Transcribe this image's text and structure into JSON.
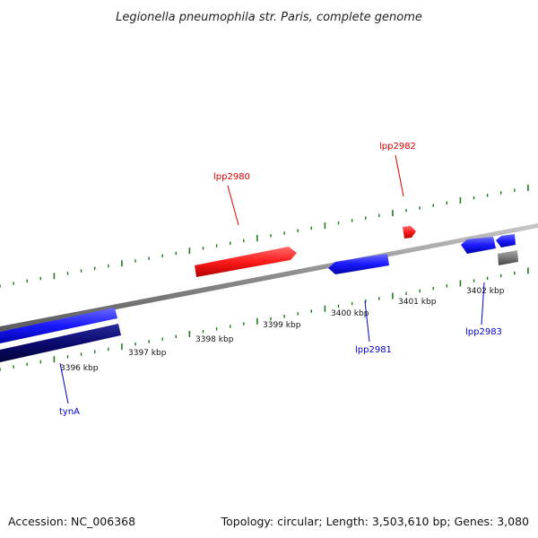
{
  "title": "Legionella pneumophila str. Paris, complete genome",
  "footer": {
    "accession": "Accession: NC_006368",
    "summary": "Topology: circular; Length: 3,503,610 bp; Genes: 3,080"
  },
  "tick_labels": [
    "3396 kbp",
    "3397 kbp",
    "3398 kbp",
    "3399 kbp",
    "3400 kbp",
    "3401 kbp",
    "3402 kbp"
  ],
  "genes": [
    {
      "name": "tynA",
      "strand": "reverse",
      "color": "#0000cc"
    },
    {
      "name": "lpp2980",
      "strand": "forward",
      "color": "#e00000"
    },
    {
      "name": "lpp2981",
      "strand": "reverse",
      "color": "#0000cc"
    },
    {
      "name": "lpp2982",
      "strand": "forward",
      "color": "#e00000"
    },
    {
      "name": "lpp2983",
      "strand": "reverse",
      "color": "#0000cc"
    }
  ],
  "colors": {
    "backbone": "#8a8a8a",
    "tick": "#1f7a1f",
    "forward_gene": "#ff1a1a",
    "reverse_gene": "#1a1aff",
    "reverse_gene_dark": "#0a0a70",
    "other_feature": "#777777"
  }
}
